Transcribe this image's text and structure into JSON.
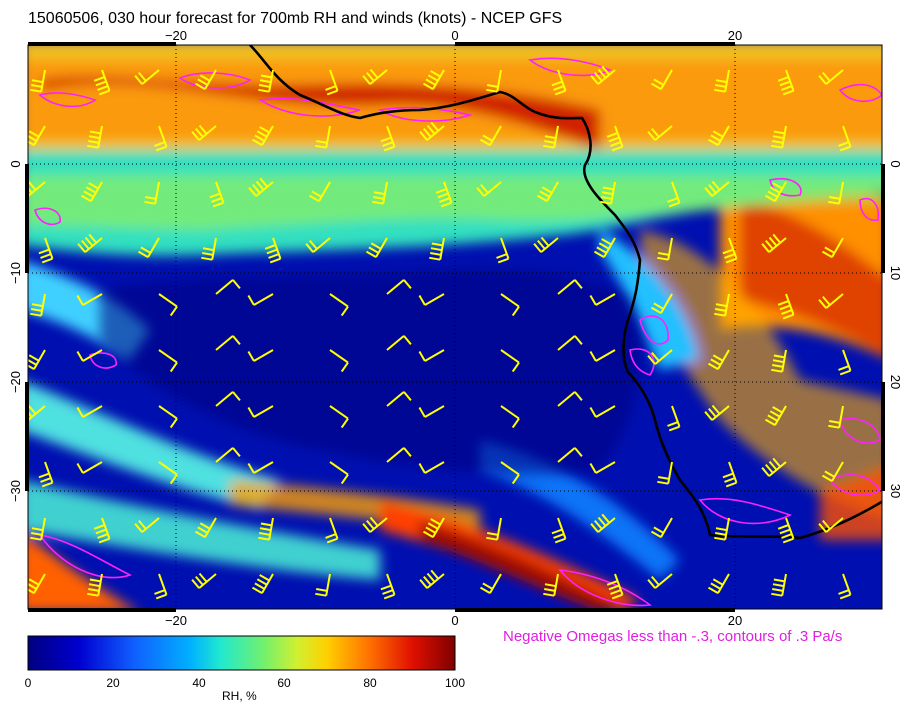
{
  "title": "15060506, 030 hour forecast for 700mb RH and winds (knots) - NCEP GFS",
  "footnote": "Negative Omegas less than -.3, contours of .3 Pa/s",
  "colorbar": {
    "label": "RH, %",
    "ticks": [
      "0",
      "20",
      "40",
      "60",
      "80",
      "100"
    ],
    "colors": [
      "#00007f",
      "#0000d0",
      "#1060ff",
      "#00b0ff",
      "#20e8d0",
      "#70f070",
      "#d0f030",
      "#ffd000",
      "#ff7000",
      "#e01000",
      "#7f0000"
    ]
  },
  "axes": {
    "lon_top": [
      "−20",
      "0",
      "20"
    ],
    "lon_bottom": [
      "−20",
      "0",
      "20"
    ],
    "lat_left": [
      "0",
      "−10",
      "−20",
      "−30"
    ],
    "lat_right": [
      "0",
      "10",
      "20",
      "30"
    ]
  },
  "colors": {
    "wind_barbs": "#ffff00",
    "omega_contours": "#ff20ff",
    "coastline": "#000000"
  }
}
